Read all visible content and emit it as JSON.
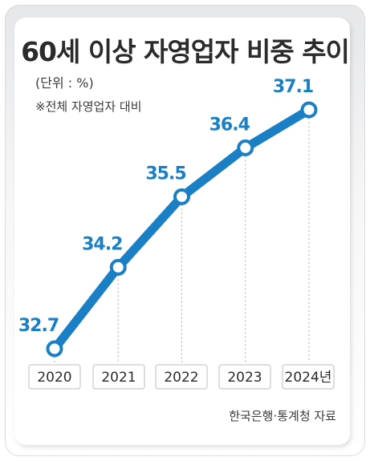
{
  "title": "60세 이상 자영업자 비중 추이",
  "unit_label": "(단위 : %)",
  "note": "※전체 자영업자 대비",
  "source": "한국은행·통계청 자료",
  "colors": {
    "line": "#1a7fc4",
    "label": "#1a7fc4",
    "grid": "#a9a9a9"
  },
  "chart_data": {
    "type": "line",
    "categories": [
      "2020",
      "2021",
      "2022",
      "2023",
      "2024년"
    ],
    "values": [
      32.7,
      34.2,
      35.5,
      36.4,
      37.1
    ],
    "value_labels": [
      "32.7",
      "34.2",
      "35.5",
      "36.4",
      "37.1"
    ],
    "title": "60세 이상 자영업자 비중 추이",
    "ylabel": "(단위 : %)",
    "ylim": [
      32.7,
      37.1
    ],
    "grid": "vertical dotted lines from points",
    "legend": "none"
  }
}
